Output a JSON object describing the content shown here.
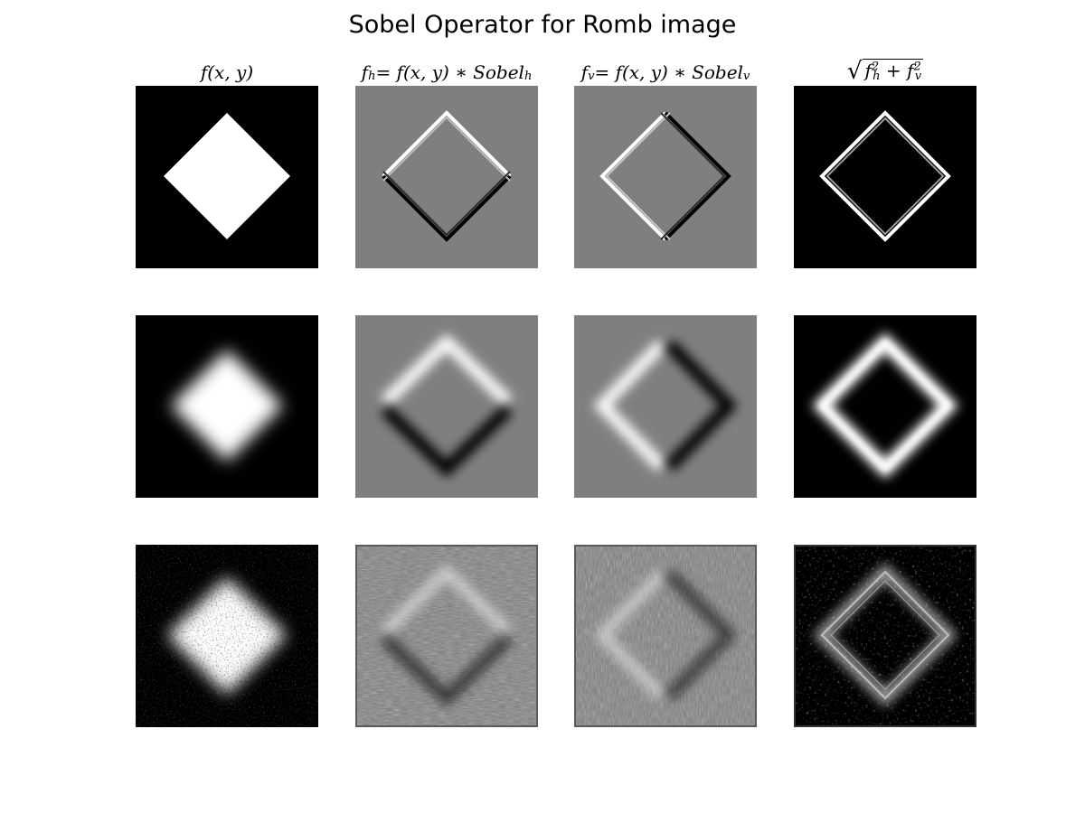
{
  "figure": {
    "title": "Sobel Operator for Romb image"
  },
  "columns": {
    "original": {
      "label": "f(x, y)"
    },
    "horizontal": {
      "label_lhs": "f",
      "label_sub": "h",
      "label_rhs": " = f(x, y) ∗ Sobel",
      "label_rhs_sub": "h"
    },
    "vertical": {
      "label_lhs": "f",
      "label_sub": "v",
      "label_rhs": " = f(x, y) ∗ Sobel",
      "label_rhs_sub": "v"
    },
    "magnitude": {
      "label_a": "f",
      "label_a_sub": "h",
      "label_a_sup": "2",
      "label_plus": " + ",
      "label_b": "f",
      "label_b_sub": "v",
      "label_b_sup": "2"
    }
  },
  "rows": [
    "sharp",
    "blurred",
    "noisy"
  ],
  "colors": {
    "background_dark": "#000000",
    "background_mid": "#7f7f7f",
    "foreground": "#ffffff",
    "edge_dark": "#000000"
  }
}
